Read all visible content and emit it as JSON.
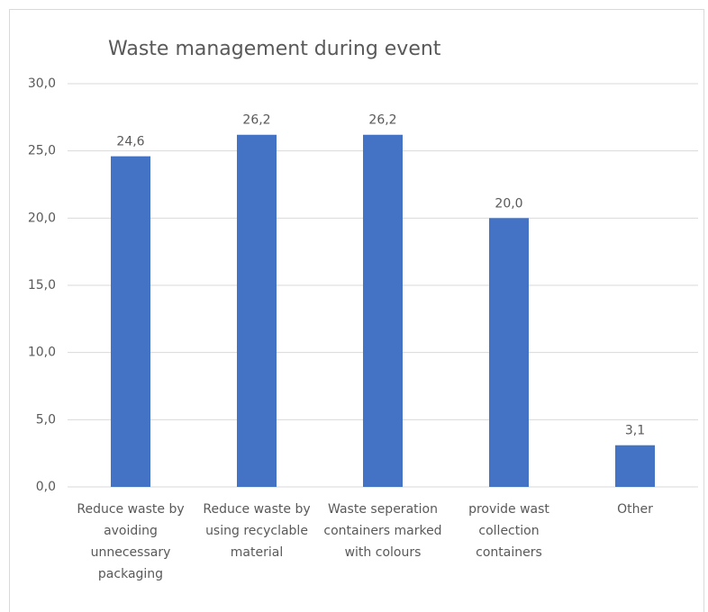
{
  "chart_data": {
    "type": "bar",
    "title": "Waste management during event",
    "categories": [
      "Reduce waste by avoiding unnecessary packaging",
      "Reduce waste by using recyclable material",
      "Waste seperation containers marked with colours",
      "provide wast collection containers",
      "Other"
    ],
    "values": [
      24.6,
      26.2,
      26.2,
      20.0,
      3.1
    ],
    "value_labels": [
      "24,6",
      "26,2",
      "26,2",
      "20,0",
      "3,1"
    ],
    "color": "#4472c4",
    "ylim": [
      0,
      30
    ],
    "yticks": [
      {
        "value": 0,
        "label": "0,0"
      },
      {
        "value": 5,
        "label": "5,0"
      },
      {
        "value": 10,
        "label": "10,0"
      },
      {
        "value": 15,
        "label": "15,0"
      },
      {
        "value": 20,
        "label": "20,0"
      },
      {
        "value": 25,
        "label": "25,0"
      },
      {
        "value": 30,
        "label": "30,0"
      }
    ],
    "grid": true
  }
}
